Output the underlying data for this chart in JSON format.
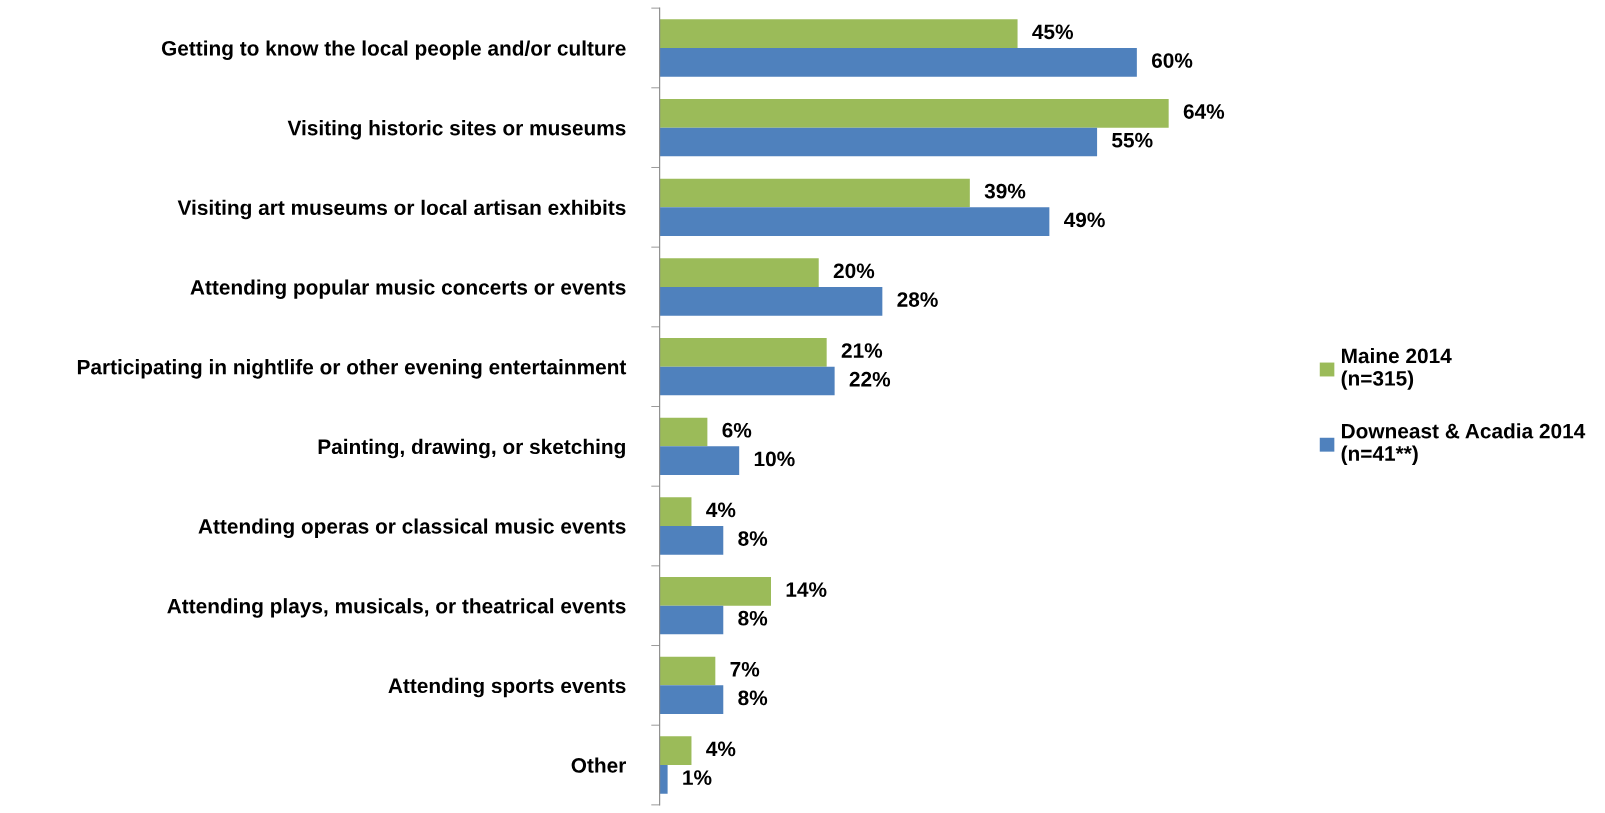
{
  "chart_data": {
    "type": "bar",
    "orientation": "horizontal",
    "categories": [
      "Getting to know the local people and/or culture",
      "Visiting historic sites or museums",
      "Visiting art museums or local artisan exhibits",
      "Attending popular music concerts or events",
      "Participating in nightlife or other evening entertainment",
      "Painting, drawing, or sketching",
      "Attending operas or classical music events",
      "Attending plays, musicals, or theatrical events",
      "Attending sports events",
      "Other"
    ],
    "series": [
      {
        "name": "Maine 2014\n(n=315)",
        "color": "#9bbb59",
        "values": [
          45,
          64,
          39,
          20,
          21,
          6,
          4,
          14,
          7,
          4
        ],
        "value_labels": [
          "45%",
          "64%",
          "39%",
          "20%",
          "21%",
          "6%",
          "4%",
          "14%",
          "7%",
          "4%"
        ]
      },
      {
        "name": "Downeast & Acadia 2014\n(n=41**)",
        "color": "#4f81bd",
        "values": [
          60,
          55,
          49,
          28,
          22,
          10,
          8,
          8,
          8,
          1
        ],
        "value_labels": [
          "60%",
          "55%",
          "49%",
          "28%",
          "22%",
          "10%",
          "8%",
          "8%",
          "8%",
          "1%"
        ]
      }
    ],
    "legend": "right"
  }
}
